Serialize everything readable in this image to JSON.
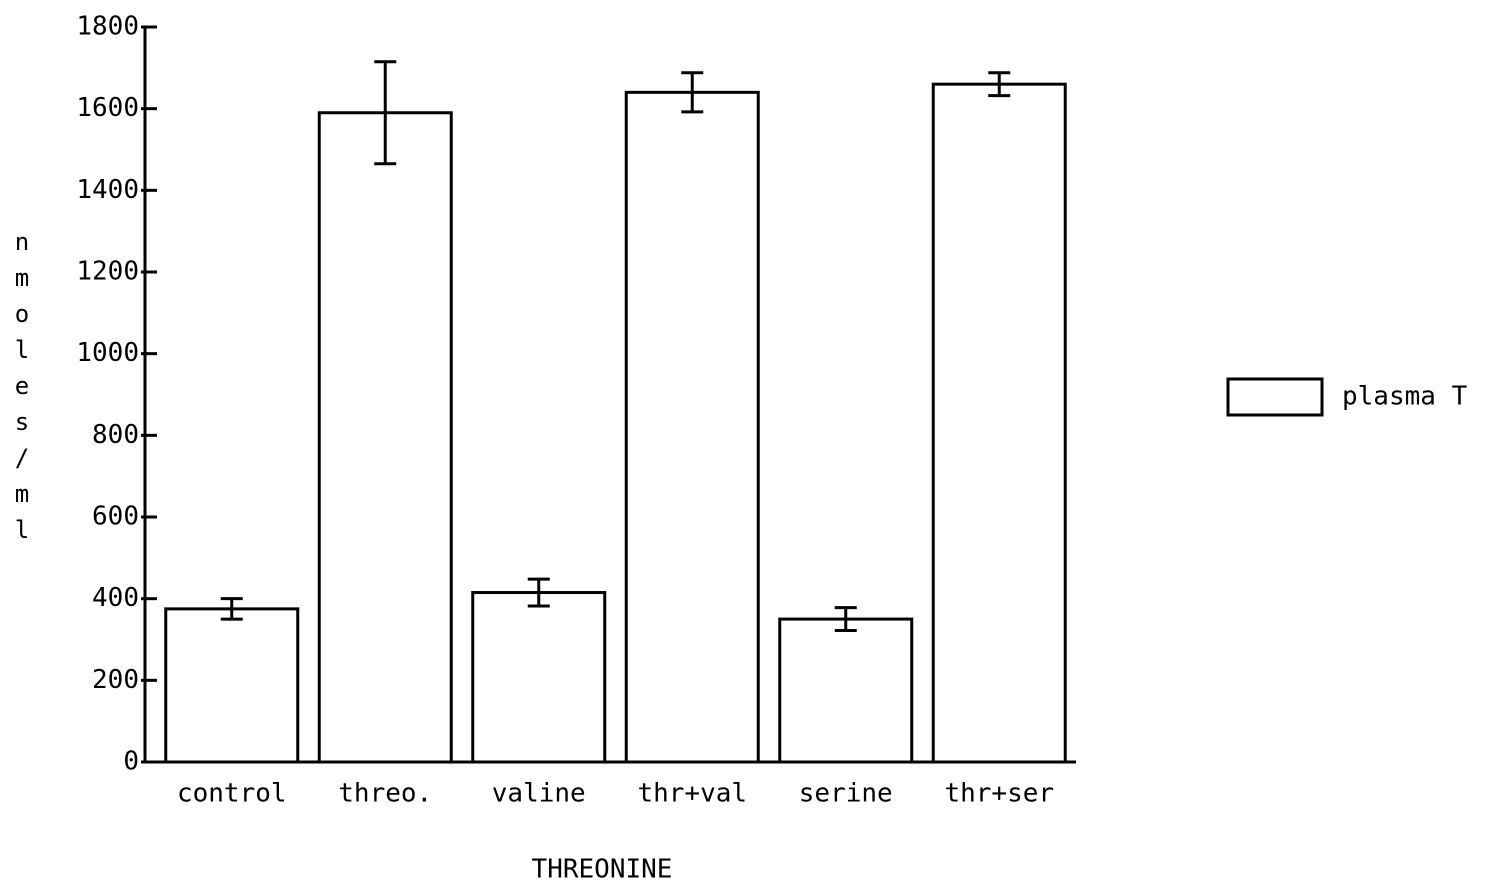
{
  "chart_data": {
    "type": "bar",
    "x_label": "THREONINE",
    "y_label": "nmoles/ml",
    "categories": [
      "control",
      "threo.",
      "valine",
      "thr+val",
      "serine",
      "thr+ser"
    ],
    "series": [
      {
        "name": "plasma T",
        "color": "#ffffff",
        "values": [
          375,
          1590,
          415,
          1640,
          350,
          1660
        ],
        "errors": [
          25,
          125,
          33,
          48,
          28,
          28
        ]
      }
    ],
    "ylim": [
      0,
      1800
    ],
    "yticks": [
      0,
      200,
      400,
      600,
      800,
      1000,
      1200,
      1400,
      1600,
      1800
    ],
    "legend": "right",
    "grid": false
  }
}
